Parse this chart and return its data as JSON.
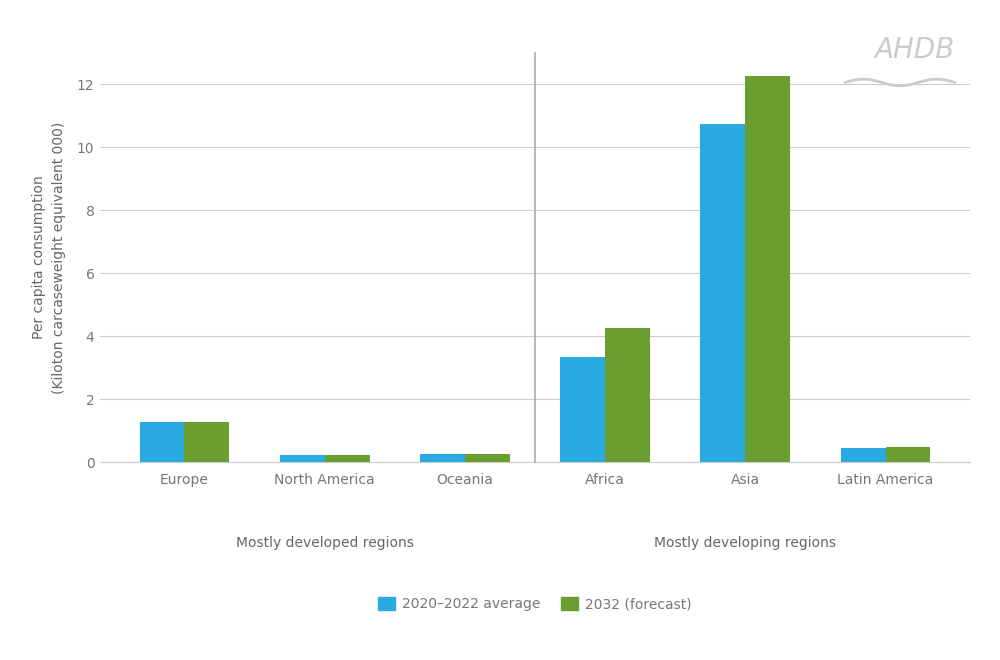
{
  "categories": [
    "Europe",
    "North America",
    "Oceania",
    "Africa",
    "Asia",
    "Latin America"
  ],
  "group_labels": [
    "Mostly developed regions",
    "Mostly developing regions"
  ],
  "values_2020_2022": [
    1.28,
    0.22,
    0.26,
    3.35,
    10.75,
    0.43
  ],
  "values_2032": [
    1.28,
    0.22,
    0.24,
    4.25,
    12.25,
    0.48
  ],
  "color_blue": "#29ABE2",
  "color_green": "#6A9E2F",
  "ylabel_line1": "Per capita consumption",
  "ylabel_line2": "(Kiloton carcaseweight equivalent 000)",
  "ylim": [
    0,
    13
  ],
  "yticks": [
    0,
    2,
    4,
    6,
    8,
    10,
    12
  ],
  "legend_label_blue": "2020–2022 average",
  "legend_label_green": "2032 (forecast)",
  "bar_width": 0.32,
  "background_color": "#ffffff",
  "grid_color": "#cccccc",
  "tick_color": "#777777",
  "label_color": "#666666",
  "divider_color": "#aaaaaa",
  "ahdb_color": "#cccccc",
  "label_fontsize": 10,
  "tick_fontsize": 10,
  "group_label_fontsize": 10,
  "ahdb_fontsize": 20
}
